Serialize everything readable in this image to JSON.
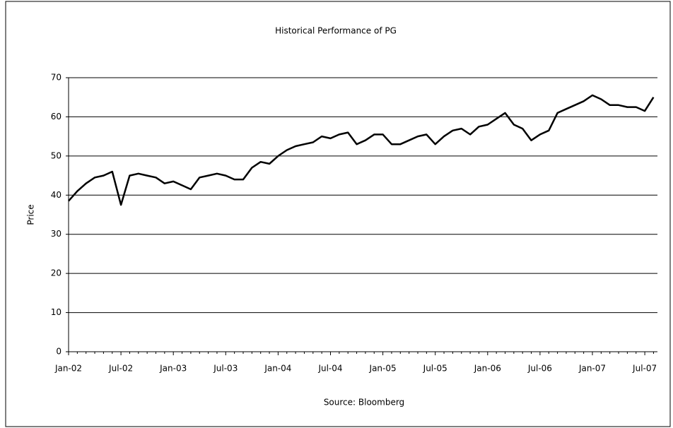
{
  "chart_data": {
    "type": "line",
    "title": "Historical Performance of PG",
    "y_label": "Price",
    "source": "Source: Bloomberg",
    "categories": [
      "Jan-02",
      null,
      null,
      null,
      null,
      null,
      "Jul-02",
      null,
      null,
      null,
      null,
      null,
      "Jan-03",
      null,
      null,
      null,
      null,
      null,
      "Jul-03",
      null,
      null,
      null,
      null,
      null,
      "Jan-04",
      null,
      null,
      null,
      null,
      null,
      "Jul-04",
      null,
      null,
      null,
      null,
      null,
      "Jan-05",
      null,
      null,
      null,
      null,
      null,
      "Jul-05",
      null,
      null,
      null,
      null,
      null,
      "Jan-06",
      null,
      null,
      null,
      null,
      null,
      "Jul-06",
      null,
      null,
      null,
      null,
      null,
      "Jan-07",
      null,
      null,
      null,
      null,
      null,
      "Jul-07",
      null
    ],
    "values": [
      38.5,
      41,
      43,
      44.5,
      45,
      46,
      37.5,
      45,
      45.5,
      45,
      44.5,
      43,
      43.5,
      42.5,
      41.5,
      44.5,
      45,
      45.5,
      45,
      44,
      44,
      47,
      48.5,
      48,
      50,
      51.5,
      52.5,
      53,
      53.5,
      55,
      54.5,
      55.5,
      56,
      53,
      54,
      55.5,
      55.5,
      53,
      53,
      54,
      55,
      55.5,
      53,
      55,
      56.5,
      57,
      55.5,
      57.5,
      58,
      59.5,
      61,
      58,
      57,
      54,
      55.5,
      56.5,
      61,
      62,
      63,
      64,
      65.5,
      64.5,
      63,
      63,
      62.5,
      62.5,
      61.5,
      65
    ],
    "color": "#000000",
    "ylim": [
      0,
      70
    ],
    "yticks": [
      0,
      10,
      20,
      30,
      40,
      50,
      60,
      70
    ],
    "grid": true
  }
}
